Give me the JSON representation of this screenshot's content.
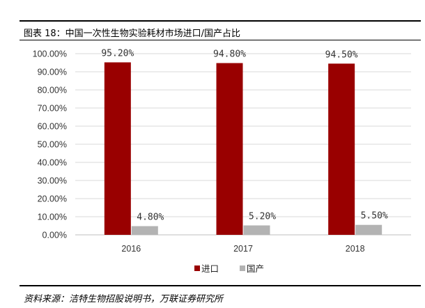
{
  "figure": {
    "title": "图表 18：中国一次性生物实验耗材市场进口/国产占比",
    "source": "资料来源：洁特生物招股说明书，万联证券研究所"
  },
  "colors": {
    "import": "#990000",
    "domestic": "#b3b3b3",
    "grid": "#d9d9d9"
  },
  "chart_data": {
    "type": "bar",
    "categories": [
      "2016",
      "2017",
      "2018"
    ],
    "series": [
      {
        "name": "进口",
        "values": [
          95.2,
          94.8,
          94.5
        ],
        "labels": [
          "95.20%",
          "94.80%",
          "94.50%"
        ]
      },
      {
        "name": "国产",
        "values": [
          4.8,
          5.2,
          5.5
        ],
        "labels": [
          "4.80%",
          "5.20%",
          "5.50%"
        ]
      }
    ],
    "ylim": [
      0,
      100
    ],
    "yticks": [
      "0.00%",
      "10.00%",
      "20.00%",
      "30.00%",
      "40.00%",
      "50.00%",
      "60.00%",
      "70.00%",
      "80.00%",
      "90.00%",
      "100.00%"
    ],
    "grid": true,
    "legend": "bottom"
  }
}
